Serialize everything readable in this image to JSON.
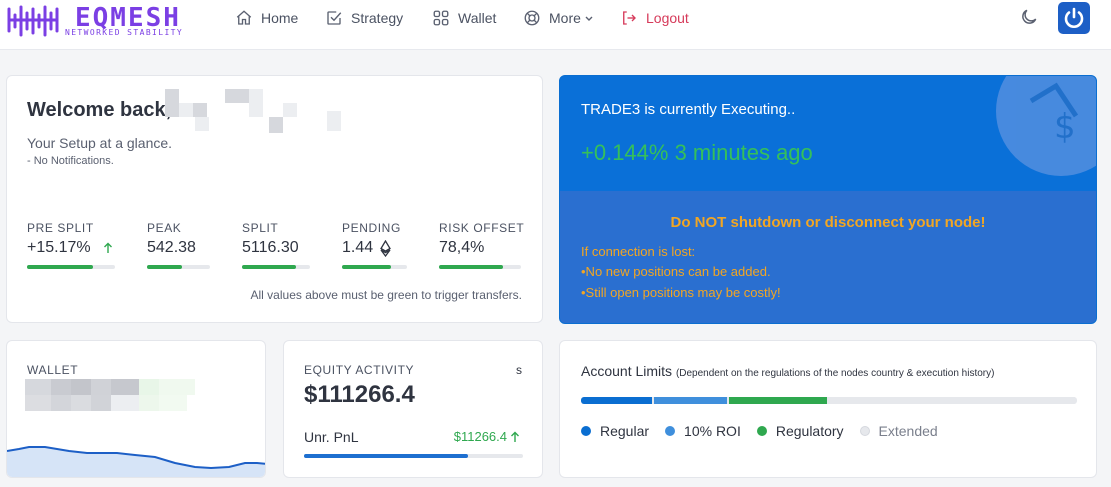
{
  "brand": {
    "name": "EQMESH",
    "tagline": "NETWORKED STABILITY",
    "color": "#7b3fe4"
  },
  "nav": {
    "items": [
      {
        "label": "Home",
        "icon": "home-icon"
      },
      {
        "label": "Strategy",
        "icon": "checkbox-icon"
      },
      {
        "label": "Wallet",
        "icon": "grid-icon"
      },
      {
        "label": "More",
        "icon": "lifebuoy-icon"
      },
      {
        "label": "Logout",
        "icon": "logout-icon"
      }
    ]
  },
  "welcome": {
    "title": "Welcome back,",
    "subtitle": "Your Setup at a glance.",
    "notifications": "- No Notifications.",
    "stats": [
      {
        "label": "PRE SPLIT",
        "value": "+15.17%",
        "progress": 0.75
      },
      {
        "label": "PEAK",
        "value": "542.38",
        "progress": 0.55
      },
      {
        "label": "SPLIT",
        "value": "5116.30",
        "progress": 0.8
      },
      {
        "label": "PENDING",
        "value": "1.44",
        "progress": 0.75
      },
      {
        "label": "RISK OFFSET",
        "value": "78,4%",
        "progress": 0.78
      }
    ],
    "note": "All values above must be green to trigger transfers."
  },
  "trade": {
    "title": "TRADE3 is currently Executing..",
    "status": "+0.144% 3 minutes ago",
    "warning": "Do NOT shutdown or disconnect your node!",
    "lines": [
      "If connection is lost:",
      "•No new positions can be added.",
      "•Still open positions may be costly!"
    ]
  },
  "wallet": {
    "label": "WALLET"
  },
  "equity": {
    "label": "EQUITY ACTIVITY",
    "suffix": "s",
    "value": "$111266.4",
    "pnl_label": "Unr. PnL",
    "pnl_value": "$11266.4",
    "progress": 0.75
  },
  "limits": {
    "title": "Account Limits",
    "subtitle": "(Dependent on the regulations of the nodes country & execution history)",
    "segments": [
      {
        "name": "Regular",
        "fraction": 0.145,
        "color": "#0a6ed1"
      },
      {
        "name": "10% ROI",
        "fraction": 0.15,
        "color": "#3f8fdc"
      },
      {
        "name": "Regulatory",
        "fraction": 0.2,
        "color": "#2fa84f"
      },
      {
        "name": "Extended",
        "fraction": 0.505,
        "color": "#e6e8ec"
      }
    ]
  }
}
